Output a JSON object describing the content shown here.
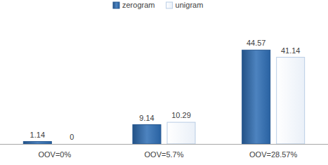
{
  "chart_data": {
    "type": "bar",
    "categories": [
      "OOV=0%",
      "OOV=5.7%",
      "OOV=28.57%"
    ],
    "series": [
      {
        "name": "zerogram",
        "color": "#2e6db4",
        "values": [
          1.14,
          9.14,
          44.57
        ]
      },
      {
        "name": "unigram",
        "color": "#ffffff",
        "values": [
          0,
          10.29,
          41.14
        ]
      }
    ],
    "ylim": [
      0,
      50
    ],
    "legend": "top",
    "data_labels": true,
    "tick_labels": "x",
    "grid": false
  }
}
